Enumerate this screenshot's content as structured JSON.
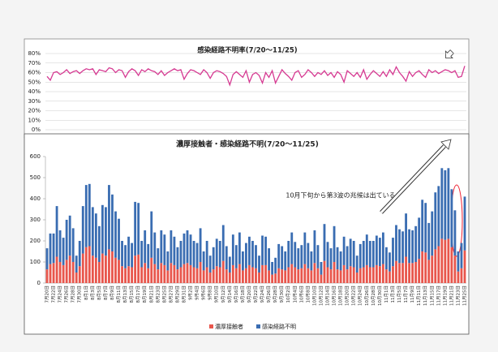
{
  "chart_data": [
    {
      "type": "line",
      "title": "感染経路不明率(7/20～11/25)",
      "color": "#d63a92",
      "grid": true,
      "ylim": [
        0,
        80
      ],
      "yticks": [
        {
          "value": 0,
          "label": "0%"
        },
        {
          "value": 10,
          "label": "10%"
        },
        {
          "value": 20,
          "label": "20%"
        },
        {
          "value": 30,
          "label": "30%"
        },
        {
          "value": 40,
          "label": "40%"
        },
        {
          "value": 50,
          "label": "50%"
        },
        {
          "value": 60,
          "label": "60%"
        },
        {
          "value": 70,
          "label": "70%"
        },
        {
          "value": 80,
          "label": "80%"
        }
      ],
      "values": [
        56,
        52,
        60,
        61,
        58,
        60,
        63,
        59,
        61,
        62,
        59,
        62,
        64,
        63,
        64,
        58,
        63,
        62,
        61,
        65,
        64,
        60,
        63,
        62,
        55,
        61,
        64,
        62,
        57,
        63,
        61,
        64,
        62,
        61,
        58,
        62,
        57,
        60,
        62,
        64,
        62,
        63,
        53,
        59,
        63,
        62,
        60,
        58,
        63,
        60,
        54,
        60,
        62,
        61,
        59,
        56,
        47,
        58,
        61,
        58,
        55,
        62,
        50,
        58,
        60,
        57,
        49,
        60,
        55,
        62,
        49,
        56,
        63,
        59,
        56,
        52,
        60,
        62,
        55,
        58,
        63,
        60,
        56,
        60,
        58,
        62,
        57,
        60,
        55,
        61,
        58,
        50,
        62,
        59,
        56,
        60,
        55,
        63,
        53,
        58,
        62,
        59,
        56,
        61,
        56,
        63,
        58,
        66,
        60,
        56,
        51,
        61,
        56,
        60,
        62,
        58,
        55,
        63,
        60,
        62,
        59,
        61,
        63,
        62,
        60,
        62,
        55,
        56,
        67
      ]
    },
    {
      "type": "bar",
      "stacked": true,
      "title": "濃厚接触者・感染経路不明(7/20～11/25)",
      "grid": false,
      "annotation": "10月下旬から第3波の兆候は出ている",
      "ylim": [
        0,
        600
      ],
      "yticks": [
        0,
        100,
        200,
        300,
        400,
        500,
        600
      ],
      "categories": [
        "7月20日",
        null,
        "7月22日",
        null,
        "7月24日",
        null,
        "7月26日",
        null,
        "7月28日",
        null,
        "7月30日",
        null,
        "8月1日",
        null,
        "8月3日",
        null,
        "8月5日",
        null,
        "8月7日",
        null,
        "8月9日",
        null,
        "8月11日",
        null,
        "8月13日",
        null,
        "8月15日",
        null,
        "8月17日",
        null,
        "8月19日",
        null,
        "8月21日",
        null,
        "8月23日",
        null,
        "8月25日",
        null,
        "8月27日",
        null,
        "8月29日",
        null,
        "8月31日",
        null,
        "9月2日",
        null,
        "9月4日",
        null,
        "9月6日",
        null,
        "9月8日",
        null,
        "9月10日",
        null,
        "9月12日",
        null,
        "9月14日",
        null,
        "9月16日",
        null,
        "9月18日",
        null,
        "9月20日",
        null,
        "9月22日",
        null,
        "9月24日",
        null,
        "9月26日",
        null,
        "9月28日",
        null,
        "9月30日",
        null,
        "10月2日",
        null,
        "10月4日",
        null,
        "10月6日",
        null,
        "10月8日",
        null,
        "10月10日",
        null,
        "10月12日",
        null,
        "10月14日",
        null,
        "10月16日",
        null,
        "10月18日",
        null,
        "10月20日",
        null,
        "10月22日",
        null,
        "10月24日",
        null,
        "10月26日",
        null,
        "10月28日",
        null,
        "10月30日",
        null,
        "11月1日",
        null,
        "11月3日",
        null,
        "11月5日",
        null,
        "11月7日",
        null,
        "11月9日",
        null,
        "11月11日",
        null,
        "11月13日",
        null,
        "11月15日",
        null,
        "11月17日",
        null,
        "11月19日",
        null,
        "11月21日",
        null,
        "11月23日",
        null,
        "11月25日"
      ],
      "series": [
        {
          "name": "濃厚接触者",
          "color": "#e8564c",
          "values": [
            65,
            90,
            95,
            125,
            100,
            85,
            110,
            130,
            100,
            50,
            80,
            140,
            170,
            175,
            130,
            120,
            100,
            140,
            130,
            160,
            150,
            120,
            110,
            80,
            70,
            80,
            75,
            130,
            135,
            75,
            95,
            70,
            120,
            90,
            65,
            95,
            85,
            60,
            95,
            85,
            65,
            75,
            90,
            95,
            85,
            75,
            70,
            100,
            60,
            75,
            50,
            65,
            80,
            75,
            105,
            65,
            50,
            85,
            70,
            90,
            60,
            70,
            85,
            75,
            70,
            50,
            85,
            85,
            60,
            40,
            45,
            70,
            65,
            60,
            75,
            90,
            75,
            65,
            70,
            90,
            70,
            60,
            95,
            70,
            40,
            105,
            75,
            65,
            100,
            65,
            60,
            85,
            65,
            80,
            75,
            50,
            70,
            75,
            85,
            75,
            75,
            85,
            80,
            90,
            65,
            55,
            80,
            105,
            95,
            95,
            125,
            95,
            95,
            100,
            115,
            150,
            145,
            110,
            130,
            160,
            175,
            210,
            205,
            210,
            170,
            130,
            55,
            70,
            155
          ]
        },
        {
          "name": "感染経路不明",
          "color": "#3a6db2",
          "values": [
            100,
            145,
            140,
            240,
            150,
            130,
            190,
            190,
            160,
            80,
            120,
            225,
            295,
            295,
            230,
            210,
            170,
            230,
            230,
            305,
            270,
            220,
            195,
            120,
            110,
            140,
            115,
            255,
            245,
            125,
            155,
            115,
            220,
            150,
            100,
            155,
            145,
            90,
            155,
            135,
            105,
            125,
            145,
            155,
            145,
            125,
            120,
            160,
            90,
            125,
            80,
            105,
            130,
            125,
            170,
            110,
            75,
            145,
            110,
            150,
            90,
            120,
            135,
            125,
            110,
            80,
            140,
            135,
            105,
            60,
            75,
            115,
            110,
            90,
            125,
            150,
            120,
            100,
            110,
            150,
            120,
            90,
            155,
            110,
            60,
            175,
            120,
            100,
            170,
            105,
            90,
            135,
            110,
            130,
            125,
            80,
            115,
            125,
            145,
            125,
            125,
            140,
            135,
            150,
            105,
            90,
            135,
            170,
            160,
            150,
            205,
            160,
            155,
            170,
            195,
            245,
            235,
            175,
            210,
            270,
            285,
            335,
            330,
            335,
            275,
            215,
            95,
            120,
            255
          ]
        }
      ]
    }
  ]
}
